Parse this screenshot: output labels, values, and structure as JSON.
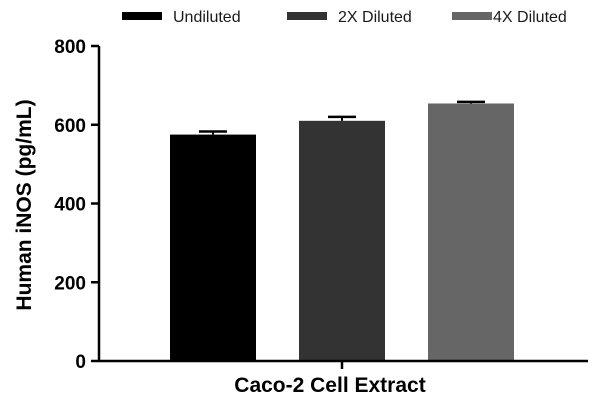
{
  "chart_data": {
    "type": "bar",
    "xlabel": "Caco-2 Cell Extract",
    "ylabel": "Human iNOS (pg/mL)",
    "ylim": [
      0,
      800
    ],
    "yticks": [
      0,
      200,
      400,
      600,
      800
    ],
    "legend_position": "top",
    "grid": false,
    "series": [
      {
        "name": "Undiluted",
        "value": 575,
        "error": 8,
        "color": "#000000"
      },
      {
        "name": "2X Diluted",
        "value": 610,
        "error": 10,
        "color": "#333333"
      },
      {
        "name": "4X Diluted",
        "value": 654,
        "error": 4,
        "color": "#666666"
      }
    ]
  }
}
